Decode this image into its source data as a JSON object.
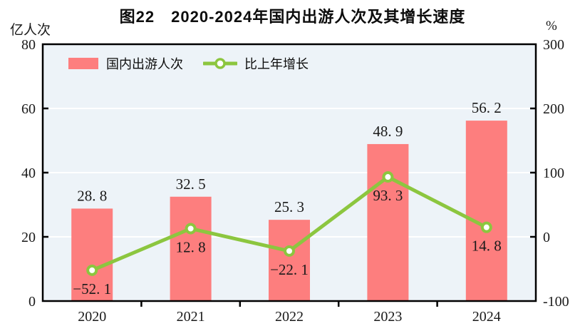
{
  "chart_data": {
    "type": "bar+line",
    "title": "图22　2020-2024年国内出游人次及其增长速度",
    "categories": [
      "2020",
      "2021",
      "2022",
      "2023",
      "2024"
    ],
    "series": [
      {
        "name": "国内出游人次",
        "type": "bar",
        "axis": "left",
        "values": [
          28.8,
          32.5,
          25.3,
          48.9,
          56.2
        ],
        "labels": [
          "28. 8",
          "32. 5",
          "25. 3",
          "48. 9",
          "56. 2"
        ],
        "color": "#fd7e7e"
      },
      {
        "name": "比上年增长",
        "type": "line",
        "axis": "right",
        "values": [
          -52.1,
          12.8,
          -22.1,
          93.3,
          14.8
        ],
        "labels": [
          "−52. 1",
          "12. 8",
          "−22. 1",
          "93. 3",
          "14. 8"
        ],
        "color": "#8cc63f"
      }
    ],
    "left_axis": {
      "unit": "亿人次",
      "min": 0,
      "max": 80,
      "ticks": [
        0,
        20,
        40,
        60,
        80
      ]
    },
    "right_axis": {
      "unit": "%",
      "min": -100,
      "max": 300,
      "ticks": [
        -100,
        0,
        100,
        200,
        300
      ]
    },
    "plot_bg": "#edf3f8",
    "grid_color": "#ffffff",
    "axis_color": "#000000",
    "legend_position": "top-left",
    "grid": "horizontal-only"
  }
}
